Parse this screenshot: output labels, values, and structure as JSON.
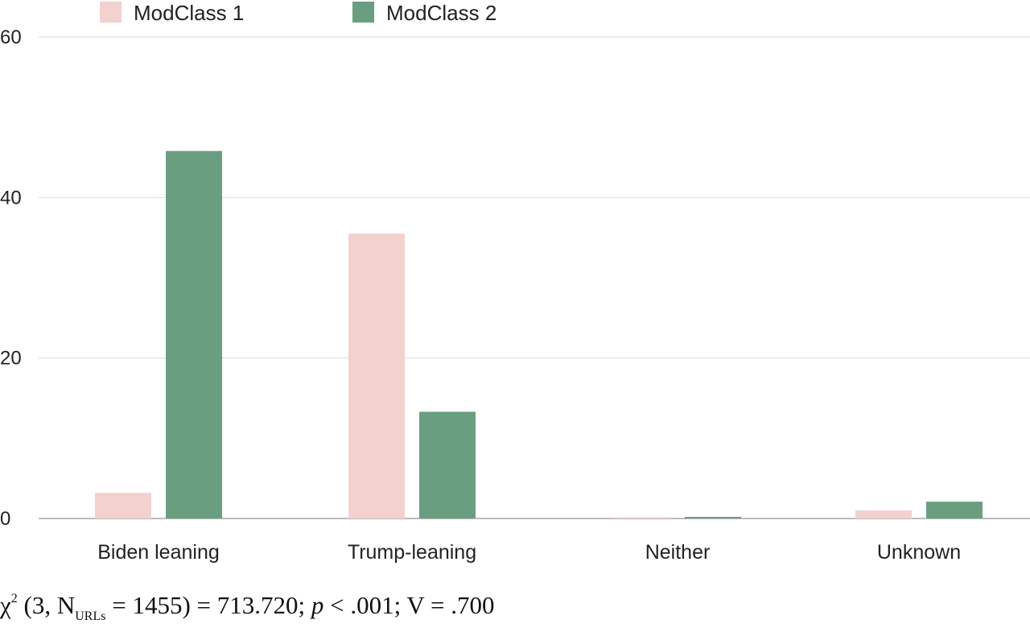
{
  "chart_data": {
    "type": "bar",
    "title": "",
    "xlabel": "",
    "ylabel": "",
    "categories": [
      "Biden leaning",
      "Trump-leaning",
      "Neither",
      "Unknown"
    ],
    "series": [
      {
        "name": "ModClass 1",
        "color": "#f2d1cf",
        "values": [
          3.2,
          35.5,
          0.0,
          1.0
        ]
      },
      {
        "name": "ModClass 2",
        "color": "#6a9e80",
        "values": [
          45.8,
          13.3,
          0.2,
          2.1
        ]
      }
    ],
    "ylim": [
      0,
      60
    ],
    "yticks": [
      0,
      20,
      40,
      60
    ],
    "ytick_labels": [
      "0",
      "20",
      "40",
      "60"
    ],
    "grid": true,
    "legend_position": "top-left"
  },
  "stats": {
    "chi": "χ",
    "chi_sup": "2",
    "open": " (3, N",
    "n_sub": "URLs",
    "mid": " = 1455) = 713.720; ",
    "p": "p",
    "tail": " < .001; V = .700"
  }
}
